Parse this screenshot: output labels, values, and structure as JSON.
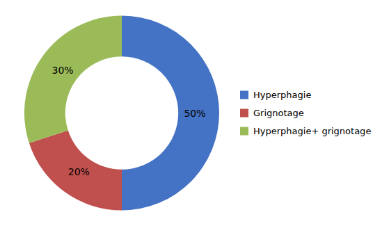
{
  "chart_data": {
    "type": "donut",
    "categories": [
      "Hyperphagie",
      "Grignotage",
      "Hyperphagie+ grignotage"
    ],
    "values": [
      50,
      20,
      30
    ],
    "value_labels": [
      "50%",
      "20%",
      "30%"
    ],
    "colors": [
      "#4472C4",
      "#C0504D",
      "#9BBB59"
    ],
    "data_labels": true,
    "legend": "right"
  }
}
